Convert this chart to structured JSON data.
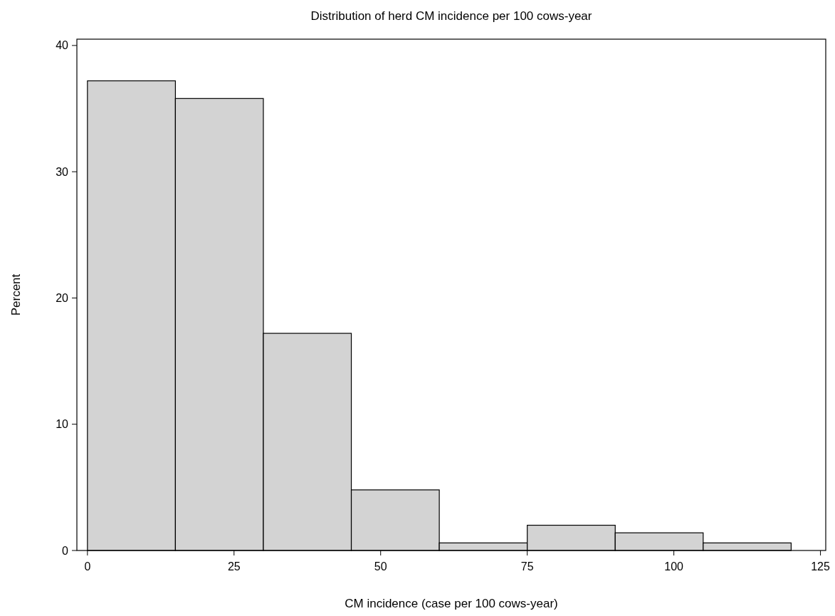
{
  "chart_data": {
    "type": "histogram",
    "title": "Distribution of herd CM incidence per 100 cows-year",
    "xlabel": "CM incidence (case per 100 cows-year)",
    "ylabel": "Percent",
    "bins": [
      0,
      15,
      30,
      45,
      60,
      75,
      90,
      105,
      120
    ],
    "values": [
      37.2,
      35.8,
      17.2,
      4.8,
      0.6,
      2.0,
      1.4,
      0.6
    ],
    "color": "#d3d3d3",
    "xlim": [
      -1.8,
      125.9
    ],
    "ylim": [
      0,
      40.5
    ],
    "xticks": [
      0,
      25,
      50,
      75,
      100,
      125
    ],
    "yticks": [
      0,
      10,
      20,
      30,
      40
    ],
    "grid": false
  }
}
